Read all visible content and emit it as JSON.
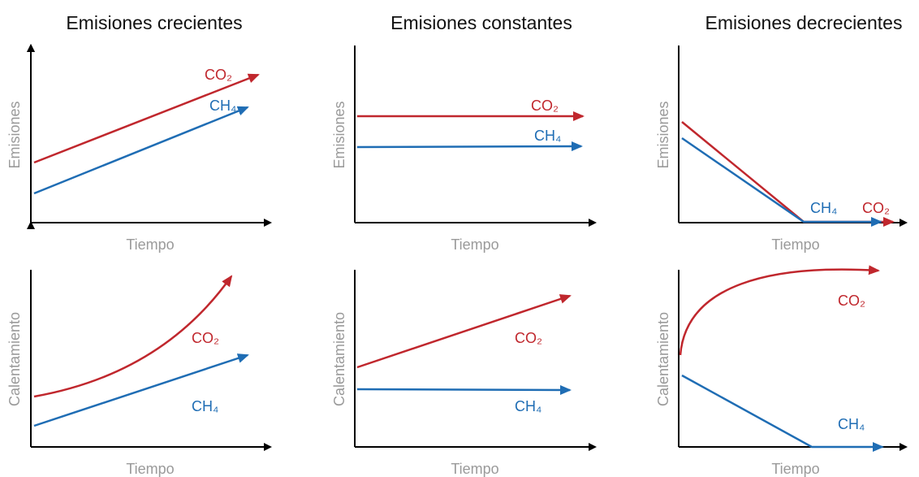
{
  "columns": [
    {
      "title": "Emisiones crecientes"
    },
    {
      "title": "Emisiones constantes"
    },
    {
      "title": "Emisiones decrecientes"
    }
  ],
  "panels": [
    {
      "y_label": "Emisiones",
      "x_label": "Tiempo",
      "co2": "CO₂",
      "ch4": "CH₄"
    },
    {
      "y_label": "Emisiones",
      "x_label": "Tiempo",
      "co2": "CO₂",
      "ch4": "CH₄"
    },
    {
      "y_label": "Emisiones",
      "x_label": "Tiempo",
      "co2": "CO₂",
      "ch4": "CH₄"
    },
    {
      "y_label": "Calentamiento",
      "x_label": "Tiempo",
      "co2": "CO₂",
      "ch4": "CH₄"
    },
    {
      "y_label": "Calentamiento",
      "x_label": "Tiempo",
      "co2": "CO₂",
      "ch4": "CH₄"
    },
    {
      "y_label": "Calentamiento",
      "x_label": "Tiempo",
      "co2": "CO₂",
      "ch4": "CH₄"
    }
  ]
}
